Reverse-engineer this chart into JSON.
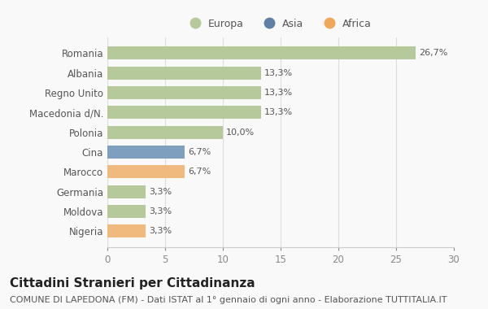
{
  "countries": [
    "Romania",
    "Albania",
    "Regno Unito",
    "Macedonia d/N.",
    "Polonia",
    "Cina",
    "Marocco",
    "Germania",
    "Moldova",
    "Nigeria"
  ],
  "values": [
    26.7,
    13.3,
    13.3,
    13.3,
    10.0,
    6.7,
    6.7,
    3.3,
    3.3,
    3.3
  ],
  "labels": [
    "26,7%",
    "13,3%",
    "13,3%",
    "13,3%",
    "10,0%",
    "6,7%",
    "6,7%",
    "3,3%",
    "3,3%",
    "3,3%"
  ],
  "continents": [
    "Europa",
    "Europa",
    "Europa",
    "Europa",
    "Europa",
    "Asia",
    "Africa",
    "Europa",
    "Europa",
    "Africa"
  ],
  "colors": {
    "Europa": "#b5c99a",
    "Asia": "#7f9fbf",
    "Africa": "#f0b97e"
  },
  "legend_colors": {
    "Europa": "#b5c99a",
    "Asia": "#6080a8",
    "Africa": "#f0a858"
  },
  "xlim": [
    0,
    30
  ],
  "xticks": [
    0,
    5,
    10,
    15,
    20,
    25,
    30
  ],
  "title": "Cittadini Stranieri per Cittadinanza",
  "subtitle": "COMUNE DI LAPEDONA (FM) - Dati ISTAT al 1° gennaio di ogni anno - Elaborazione TUTTITALIA.IT",
  "bg_color": "#f9f9f9",
  "title_fontsize": 11,
  "subtitle_fontsize": 8,
  "label_fontsize": 8,
  "tick_fontsize": 8.5,
  "legend_fontsize": 9
}
